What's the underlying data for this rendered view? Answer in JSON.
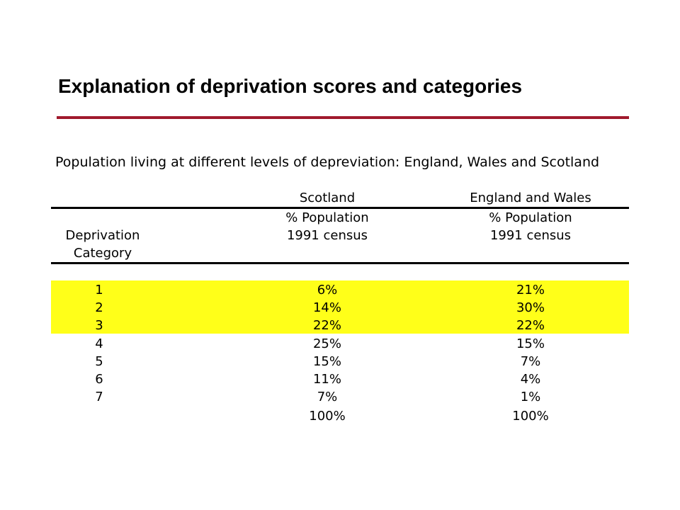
{
  "title": "Explanation of deprivation scores and categories",
  "table": {
    "caption": "Population living at different levels of depreviation: England, Wales and Scotland",
    "headers": {
      "scotland": "Scotland",
      "england_wales": "England and Wales",
      "scotland_pop": "% Population",
      "scotland_census": "1991 census",
      "england_wales_pop": "% Population",
      "england_wales_census": "1991 census",
      "category_line1": "Deprivation",
      "category_line2": "Category"
    },
    "rows": [
      {
        "category": "1",
        "scotland": "6%",
        "england_wales": "21%",
        "highlighted": true
      },
      {
        "category": "2",
        "scotland": "14%",
        "england_wales": "30%",
        "highlighted": true
      },
      {
        "category": "3",
        "scotland": "22%",
        "england_wales": "22%",
        "highlighted": true
      },
      {
        "category": "4",
        "scotland": "25%",
        "england_wales": "15%",
        "highlighted": false
      },
      {
        "category": "5",
        "scotland": "15%",
        "england_wales": "7%",
        "highlighted": false
      },
      {
        "category": "6",
        "scotland": "11%",
        "england_wales": "4%",
        "highlighted": false
      },
      {
        "category": "7",
        "scotland": "7%",
        "england_wales": "1%",
        "highlighted": false
      }
    ],
    "totals": {
      "scotland": "100%",
      "england_wales": "100%"
    }
  },
  "colors": {
    "title_rule": "#a0192c",
    "highlight": "#ffff19"
  }
}
